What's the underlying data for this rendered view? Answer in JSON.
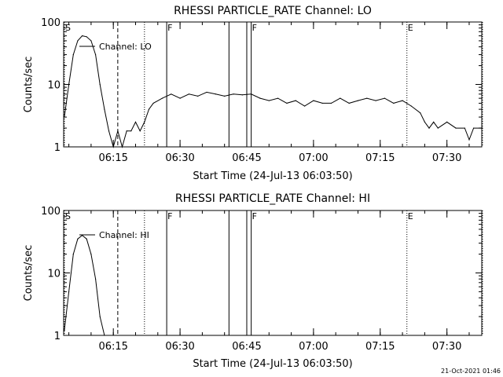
{
  "chart_data": [
    {
      "type": "line",
      "title": "RHESSI PARTICLE_RATE Channel: LO",
      "xlabel": "Start Time (24-Jul-13 06:03:50)",
      "ylabel": "Counts/sec",
      "yscale": "log",
      "ylim": [
        1,
        100
      ],
      "xlim_minutes_after_start": [
        0,
        94
      ],
      "x_tick_labels": [
        "06:15",
        "06:30",
        "06:45",
        "07:00",
        "07:15",
        "07:30"
      ],
      "y_tick_labels": [
        "1",
        "10",
        "100"
      ],
      "legend": "Channel: LO",
      "legend_position": "top-left",
      "event_markers": [
        {
          "label": "S",
          "time": "06:04",
          "style": "dotted"
        },
        {
          "label": "",
          "time": "06:16",
          "style": "dashed"
        },
        {
          "label": "",
          "time": "06:22",
          "style": "dotted"
        },
        {
          "label": "F",
          "time": "06:27",
          "style": "solid"
        },
        {
          "label": "",
          "time": "06:41",
          "style": "solid"
        },
        {
          "label": "",
          "time": "06:45",
          "style": "solid"
        },
        {
          "label": "F",
          "time": "06:46",
          "style": "solid"
        },
        {
          "label": "E",
          "time": "07:21",
          "style": "dotted"
        },
        {
          "label": "",
          "time": "07:38",
          "style": "dotted"
        }
      ],
      "series": [
        {
          "name": "Channel: LO",
          "x": [
            "06:04",
            "06:05",
            "06:06",
            "06:07",
            "06:08",
            "06:09",
            "06:10",
            "06:11",
            "06:12",
            "06:13",
            "06:14",
            "06:15",
            "06:16",
            "06:17",
            "06:18",
            "06:19",
            "06:20",
            "06:21",
            "06:22",
            "06:23",
            "06:24",
            "06:26",
            "06:28",
            "06:30",
            "06:32",
            "06:34",
            "06:36",
            "06:38",
            "06:40",
            "06:42",
            "06:44",
            "06:46",
            "06:48",
            "06:50",
            "06:52",
            "06:54",
            "06:56",
            "06:58",
            "07:00",
            "07:02",
            "07:04",
            "07:06",
            "07:08",
            "07:10",
            "07:12",
            "07:14",
            "07:16",
            "07:18",
            "07:20",
            "07:22",
            "07:24",
            "07:25",
            "07:26",
            "07:27",
            "07:28",
            "07:30",
            "07:32",
            "07:34",
            "07:35",
            "07:36",
            "07:38"
          ],
          "y": [
            3,
            10,
            30,
            50,
            60,
            58,
            50,
            30,
            10,
            4,
            1.8,
            1,
            1.8,
            1,
            1.8,
            1.8,
            2.5,
            1.8,
            2.5,
            4,
            5,
            6,
            7,
            6,
            7,
            6.5,
            7.5,
            7,
            6.5,
            7,
            6.8,
            7,
            6,
            5.5,
            6,
            5,
            5.5,
            4.5,
            5.5,
            5,
            5,
            6,
            5,
            5.5,
            6,
            5.5,
            6,
            5,
            5.5,
            4.5,
            3.5,
            2.5,
            2,
            2.5,
            2,
            2.5,
            2,
            2,
            1.3,
            2,
            2
          ]
        }
      ]
    },
    {
      "type": "line",
      "title": "RHESSI PARTICLE_RATE Channel: HI",
      "xlabel": "Start Time (24-Jul-13 06:03:50)",
      "ylabel": "Counts/sec",
      "yscale": "log",
      "ylim": [
        1,
        100
      ],
      "xlim_minutes_after_start": [
        0,
        94
      ],
      "x_tick_labels": [
        "06:15",
        "06:30",
        "06:45",
        "07:00",
        "07:15",
        "07:30"
      ],
      "y_tick_labels": [
        "1",
        "10",
        "100"
      ],
      "legend": "Channel: HI",
      "legend_position": "top-left",
      "event_markers": [
        {
          "label": "S",
          "time": "06:04",
          "style": "dotted"
        },
        {
          "label": "",
          "time": "06:16",
          "style": "dashed"
        },
        {
          "label": "",
          "time": "06:22",
          "style": "dotted"
        },
        {
          "label": "F",
          "time": "06:27",
          "style": "solid"
        },
        {
          "label": "",
          "time": "06:41",
          "style": "solid"
        },
        {
          "label": "",
          "time": "06:45",
          "style": "solid"
        },
        {
          "label": "F",
          "time": "06:46",
          "style": "solid"
        },
        {
          "label": "E",
          "time": "07:21",
          "style": "dotted"
        },
        {
          "label": "",
          "time": "07:38",
          "style": "dotted"
        }
      ],
      "series": [
        {
          "name": "Channel: HI",
          "x": [
            "06:04",
            "06:05",
            "06:06",
            "06:07",
            "06:08",
            "06:09",
            "06:10",
            "06:11",
            "06:12",
            "06:13"
          ],
          "y": [
            1.2,
            5,
            20,
            35,
            40,
            35,
            20,
            8,
            2,
            1
          ]
        }
      ]
    }
  ],
  "footer": {
    "timestamp": "21-Oct-2021 01:46"
  }
}
